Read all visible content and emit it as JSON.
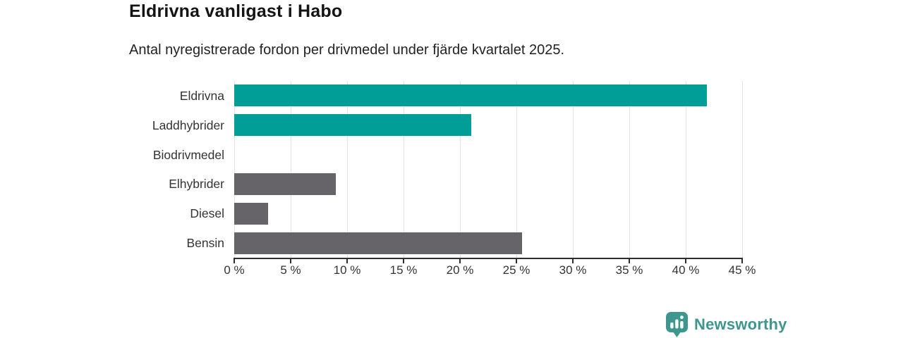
{
  "header": {
    "title": "Eldrivna vanligast i Habo",
    "subtitle": "Antal nyregistrerade fordon per drivmedel under fjärde kvartalet 2025."
  },
  "chart_data": {
    "type": "bar",
    "orientation": "horizontal",
    "title": "Eldrivna vanligast i Habo",
    "subtitle": "Antal nyregistrerade fordon per drivmedel under fjärde kvartalet 2025.",
    "categories": [
      "Eldrivna",
      "Laddhybrider",
      "Biodrivmedel",
      "Elhybrider",
      "Diesel",
      "Bensin"
    ],
    "values": [
      41.9,
      21.0,
      0,
      9.0,
      3.0,
      25.5
    ],
    "unit": "%",
    "xlim": [
      0,
      45
    ],
    "xtick_step": 5,
    "xtick_labels": [
      "0 %",
      "5 %",
      "10 %",
      "15 %",
      "20 %",
      "25 %",
      "30 %",
      "35 %",
      "40 %",
      "45 %"
    ],
    "bar_colors": [
      "#009E96",
      "#009E96",
      "#666469",
      "#666469",
      "#666469",
      "#666469"
    ],
    "highlight_color": "#009E96",
    "default_color": "#666469",
    "grid": true,
    "gridline_color": "#e3e3e3",
    "axis_color": "#2d2d2d"
  },
  "footer": {
    "brand": "Newsworthy",
    "brand_color": "#3F968F"
  }
}
